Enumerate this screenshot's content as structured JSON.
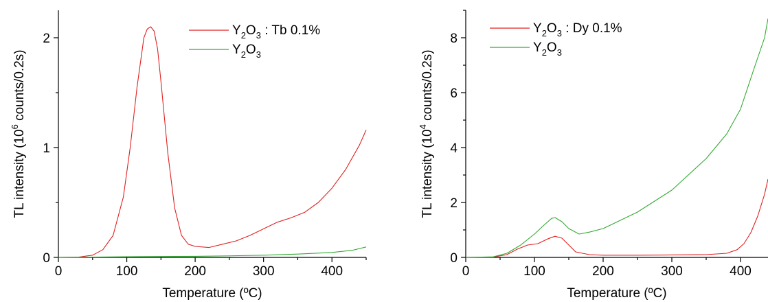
{
  "chart_data": [
    {
      "type": "line",
      "xlabel": "Temperature (ºC)",
      "ylabel_parts": [
        "TL intensity (10",
        "6",
        " counts/0.2s)"
      ],
      "xlim": [
        0,
        450
      ],
      "ylim": [
        0,
        2.25
      ],
      "xticks": [
        0,
        100,
        200,
        300,
        400
      ],
      "yticks": [
        0,
        1,
        2
      ],
      "grid": false,
      "legend_position": "top-right",
      "series": [
        {
          "name_parts": [
            "Y",
            "2",
            "O",
            "3",
            " : Tb 0.1%"
          ],
          "color": "#e02020",
          "x": [
            0,
            30,
            50,
            65,
            80,
            95,
            105,
            115,
            125,
            130,
            135,
            140,
            145,
            150,
            160,
            170,
            180,
            190,
            200,
            220,
            240,
            260,
            280,
            300,
            320,
            340,
            360,
            380,
            400,
            420,
            440,
            450
          ],
          "y": [
            0.0,
            0.003,
            0.02,
            0.07,
            0.2,
            0.55,
            1.0,
            1.55,
            2.0,
            2.08,
            2.1,
            2.06,
            1.9,
            1.6,
            0.95,
            0.45,
            0.2,
            0.12,
            0.1,
            0.09,
            0.12,
            0.15,
            0.2,
            0.26,
            0.32,
            0.36,
            0.41,
            0.5,
            0.63,
            0.8,
            1.02,
            1.16
          ]
        },
        {
          "name_parts": [
            "Y",
            "2",
            "O",
            "3",
            ""
          ],
          "color": "#33aa33",
          "x": [
            0,
            50,
            100,
            150,
            200,
            250,
            300,
            350,
            400,
            430,
            450
          ],
          "y": [
            0.0,
            0.003,
            0.006,
            0.008,
            0.01,
            0.014,
            0.02,
            0.03,
            0.045,
            0.065,
            0.095
          ]
        }
      ]
    },
    {
      "type": "line",
      "xlabel": "Temperature (ºC)",
      "ylabel_parts": [
        "TL intensity (10",
        "4",
        " counts/0.2s)"
      ],
      "xlim": [
        0,
        440
      ],
      "ylim": [
        0,
        9.0
      ],
      "xticks": [
        0,
        100,
        200,
        300,
        400
      ],
      "yticks": [
        0,
        2,
        4,
        6,
        8
      ],
      "grid": false,
      "legend_position": "top-left",
      "series": [
        {
          "name_parts": [
            "Y",
            "2",
            "O",
            "3",
            " : Dy 0.1%"
          ],
          "color": "#e02020",
          "x": [
            0,
            40,
            60,
            75,
            90,
            105,
            120,
            130,
            140,
            150,
            160,
            180,
            200,
            250,
            300,
            350,
            380,
            395,
            405,
            415,
            425,
            435,
            440
          ],
          "y": [
            0.0,
            0.01,
            0.1,
            0.3,
            0.45,
            0.5,
            0.68,
            0.77,
            0.7,
            0.45,
            0.2,
            0.1,
            0.08,
            0.08,
            0.09,
            0.1,
            0.15,
            0.28,
            0.5,
            0.9,
            1.5,
            2.3,
            2.85
          ]
        },
        {
          "name_parts": [
            "Y",
            "2",
            "O",
            "3",
            ""
          ],
          "color": "#33aa33",
          "x": [
            0,
            40,
            60,
            80,
            100,
            115,
            125,
            130,
            140,
            150,
            165,
            180,
            200,
            250,
            300,
            350,
            380,
            400,
            420,
            435,
            440
          ],
          "y": [
            0.0,
            0.02,
            0.15,
            0.45,
            0.85,
            1.2,
            1.42,
            1.45,
            1.3,
            1.05,
            0.85,
            0.92,
            1.05,
            1.65,
            2.45,
            3.6,
            4.5,
            5.4,
            6.9,
            8.0,
            8.7
          ]
        }
      ]
    }
  ]
}
